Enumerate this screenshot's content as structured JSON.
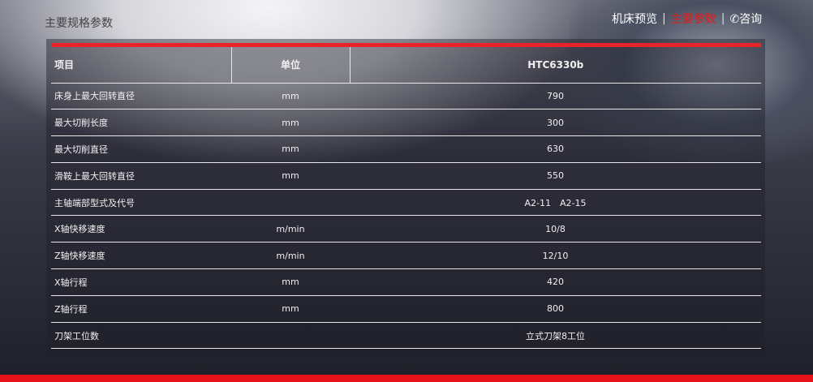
{
  "page_title": "主要规格参数",
  "nav": {
    "items": [
      "机床预览",
      "主要参数",
      "咨询"
    ],
    "active": 1,
    "phone_icon": "phone-icon"
  },
  "colors": {
    "accent": "#e8232a"
  },
  "table": {
    "headers": [
      "项目",
      "单位",
      "HTC6330b"
    ],
    "rows": [
      [
        "床身上最大回转直径",
        "mm",
        "790"
      ],
      [
        "最大切削长度",
        "mm",
        "300"
      ],
      [
        "最大切削直径",
        "mm",
        "630"
      ],
      [
        "滑鞍上最大回转直径",
        "mm",
        "550"
      ],
      [
        "主轴端部型式及代号",
        "",
        "A2-11　A2-15"
      ],
      [
        "X轴快移速度",
        "m/min",
        "10/8"
      ],
      [
        "Z轴快移速度",
        "m/min",
        "12/10"
      ],
      [
        "X轴行程",
        "mm",
        "420"
      ],
      [
        "Z轴行程",
        "mm",
        "800"
      ],
      [
        "刀架工位数",
        "",
        "立式刀架8工位"
      ]
    ]
  }
}
